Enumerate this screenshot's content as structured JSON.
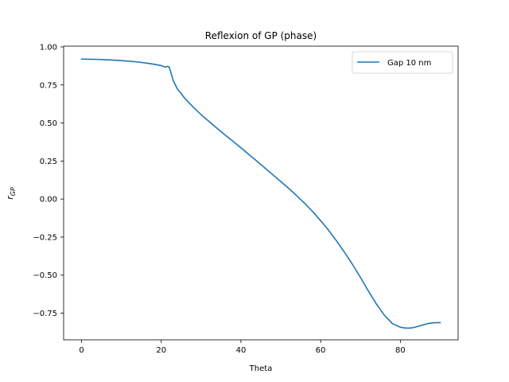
{
  "chart_data": {
    "type": "line",
    "title": "Reflexion of GP (phase)",
    "xlabel": "Theta",
    "ylabel_main": "r",
    "ylabel_sub": "GP",
    "xlim": [
      -4.5,
      94.5
    ],
    "ylim": [
      -0.925,
      1.005
    ],
    "xticks": [
      0,
      20,
      40,
      60,
      80
    ],
    "yticks": [
      1.0,
      0.75,
      0.5,
      0.25,
      0.0,
      -0.25,
      -0.5,
      -0.75
    ],
    "ytick_labels": [
      "1.00",
      "0.75",
      "0.50",
      "0.25",
      "0.00",
      "−0.25",
      "−0.50",
      "−0.75"
    ],
    "grid": false,
    "legend_position": "top-right",
    "series": [
      {
        "name": "Gap 10 nm",
        "color": "#1f77b4",
        "x": [
          0,
          2,
          4,
          6,
          8,
          10,
          12,
          14,
          16,
          18,
          20,
          21,
          21.5,
          22,
          23,
          24,
          26,
          28,
          30,
          32,
          34,
          36,
          38,
          40,
          42,
          44,
          46,
          48,
          50,
          52,
          54,
          56,
          58,
          60,
          62,
          64,
          66,
          68,
          70,
          72,
          74,
          76,
          78,
          80,
          81,
          82,
          83,
          84,
          85,
          86,
          87,
          88,
          89,
          90
        ],
        "y": [
          0.92,
          0.919,
          0.918,
          0.916,
          0.913,
          0.91,
          0.906,
          0.901,
          0.895,
          0.887,
          0.877,
          0.867,
          0.872,
          0.868,
          0.78,
          0.725,
          0.66,
          0.605,
          0.555,
          0.51,
          0.465,
          0.422,
          0.38,
          0.337,
          0.293,
          0.249,
          0.205,
          0.16,
          0.115,
          0.07,
          0.022,
          -0.028,
          -0.082,
          -0.142,
          -0.205,
          -0.275,
          -0.35,
          -0.43,
          -0.515,
          -0.605,
          -0.69,
          -0.763,
          -0.818,
          -0.842,
          -0.847,
          -0.848,
          -0.846,
          -0.84,
          -0.832,
          -0.825,
          -0.818,
          -0.814,
          -0.812,
          -0.812
        ]
      }
    ]
  }
}
